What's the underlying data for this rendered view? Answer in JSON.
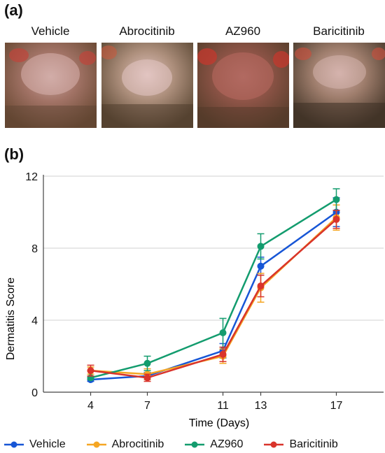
{
  "panels": {
    "a": "(a)",
    "b": "(b)"
  },
  "photos": [
    {
      "title": "Vehicle"
    },
    {
      "title": "Abrocitinib"
    },
    {
      "title": "AZ960"
    },
    {
      "title": "Baricitinib"
    }
  ],
  "chart_data": {
    "type": "line",
    "xlabel": "Time (Days)",
    "ylabel": "Dermatitis Score",
    "x": [
      4,
      7,
      11,
      13,
      17
    ],
    "x_ticks": [
      "4",
      "7",
      "11",
      "13",
      "17"
    ],
    "ylim": [
      0,
      12
    ],
    "y_ticks": [
      0,
      4,
      8,
      12
    ],
    "grid": "horizontal",
    "legend": "bottom",
    "series": [
      {
        "name": "Vehicle",
        "color": "#1756d6",
        "values": [
          0.7,
          0.9,
          2.3,
          7.0,
          10.0
        ],
        "error": [
          0.1,
          0.2,
          0.4,
          0.5,
          0.8
        ]
      },
      {
        "name": "Abrocitinib",
        "color": "#f5a623",
        "values": [
          1.2,
          1.0,
          2.0,
          5.8,
          9.7
        ],
        "error": [
          0.2,
          0.3,
          0.4,
          0.8,
          0.7
        ]
      },
      {
        "name": "AZ960",
        "color": "#139c6e",
        "values": [
          0.8,
          1.6,
          3.3,
          8.1,
          10.7
        ],
        "error": [
          0.1,
          0.4,
          0.8,
          0.7,
          0.6
        ]
      },
      {
        "name": "Baricitinib",
        "color": "#d9342b",
        "values": [
          1.2,
          0.8,
          2.1,
          5.9,
          9.6
        ],
        "error": [
          0.3,
          0.2,
          0.4,
          0.6,
          0.5
        ]
      }
    ]
  }
}
